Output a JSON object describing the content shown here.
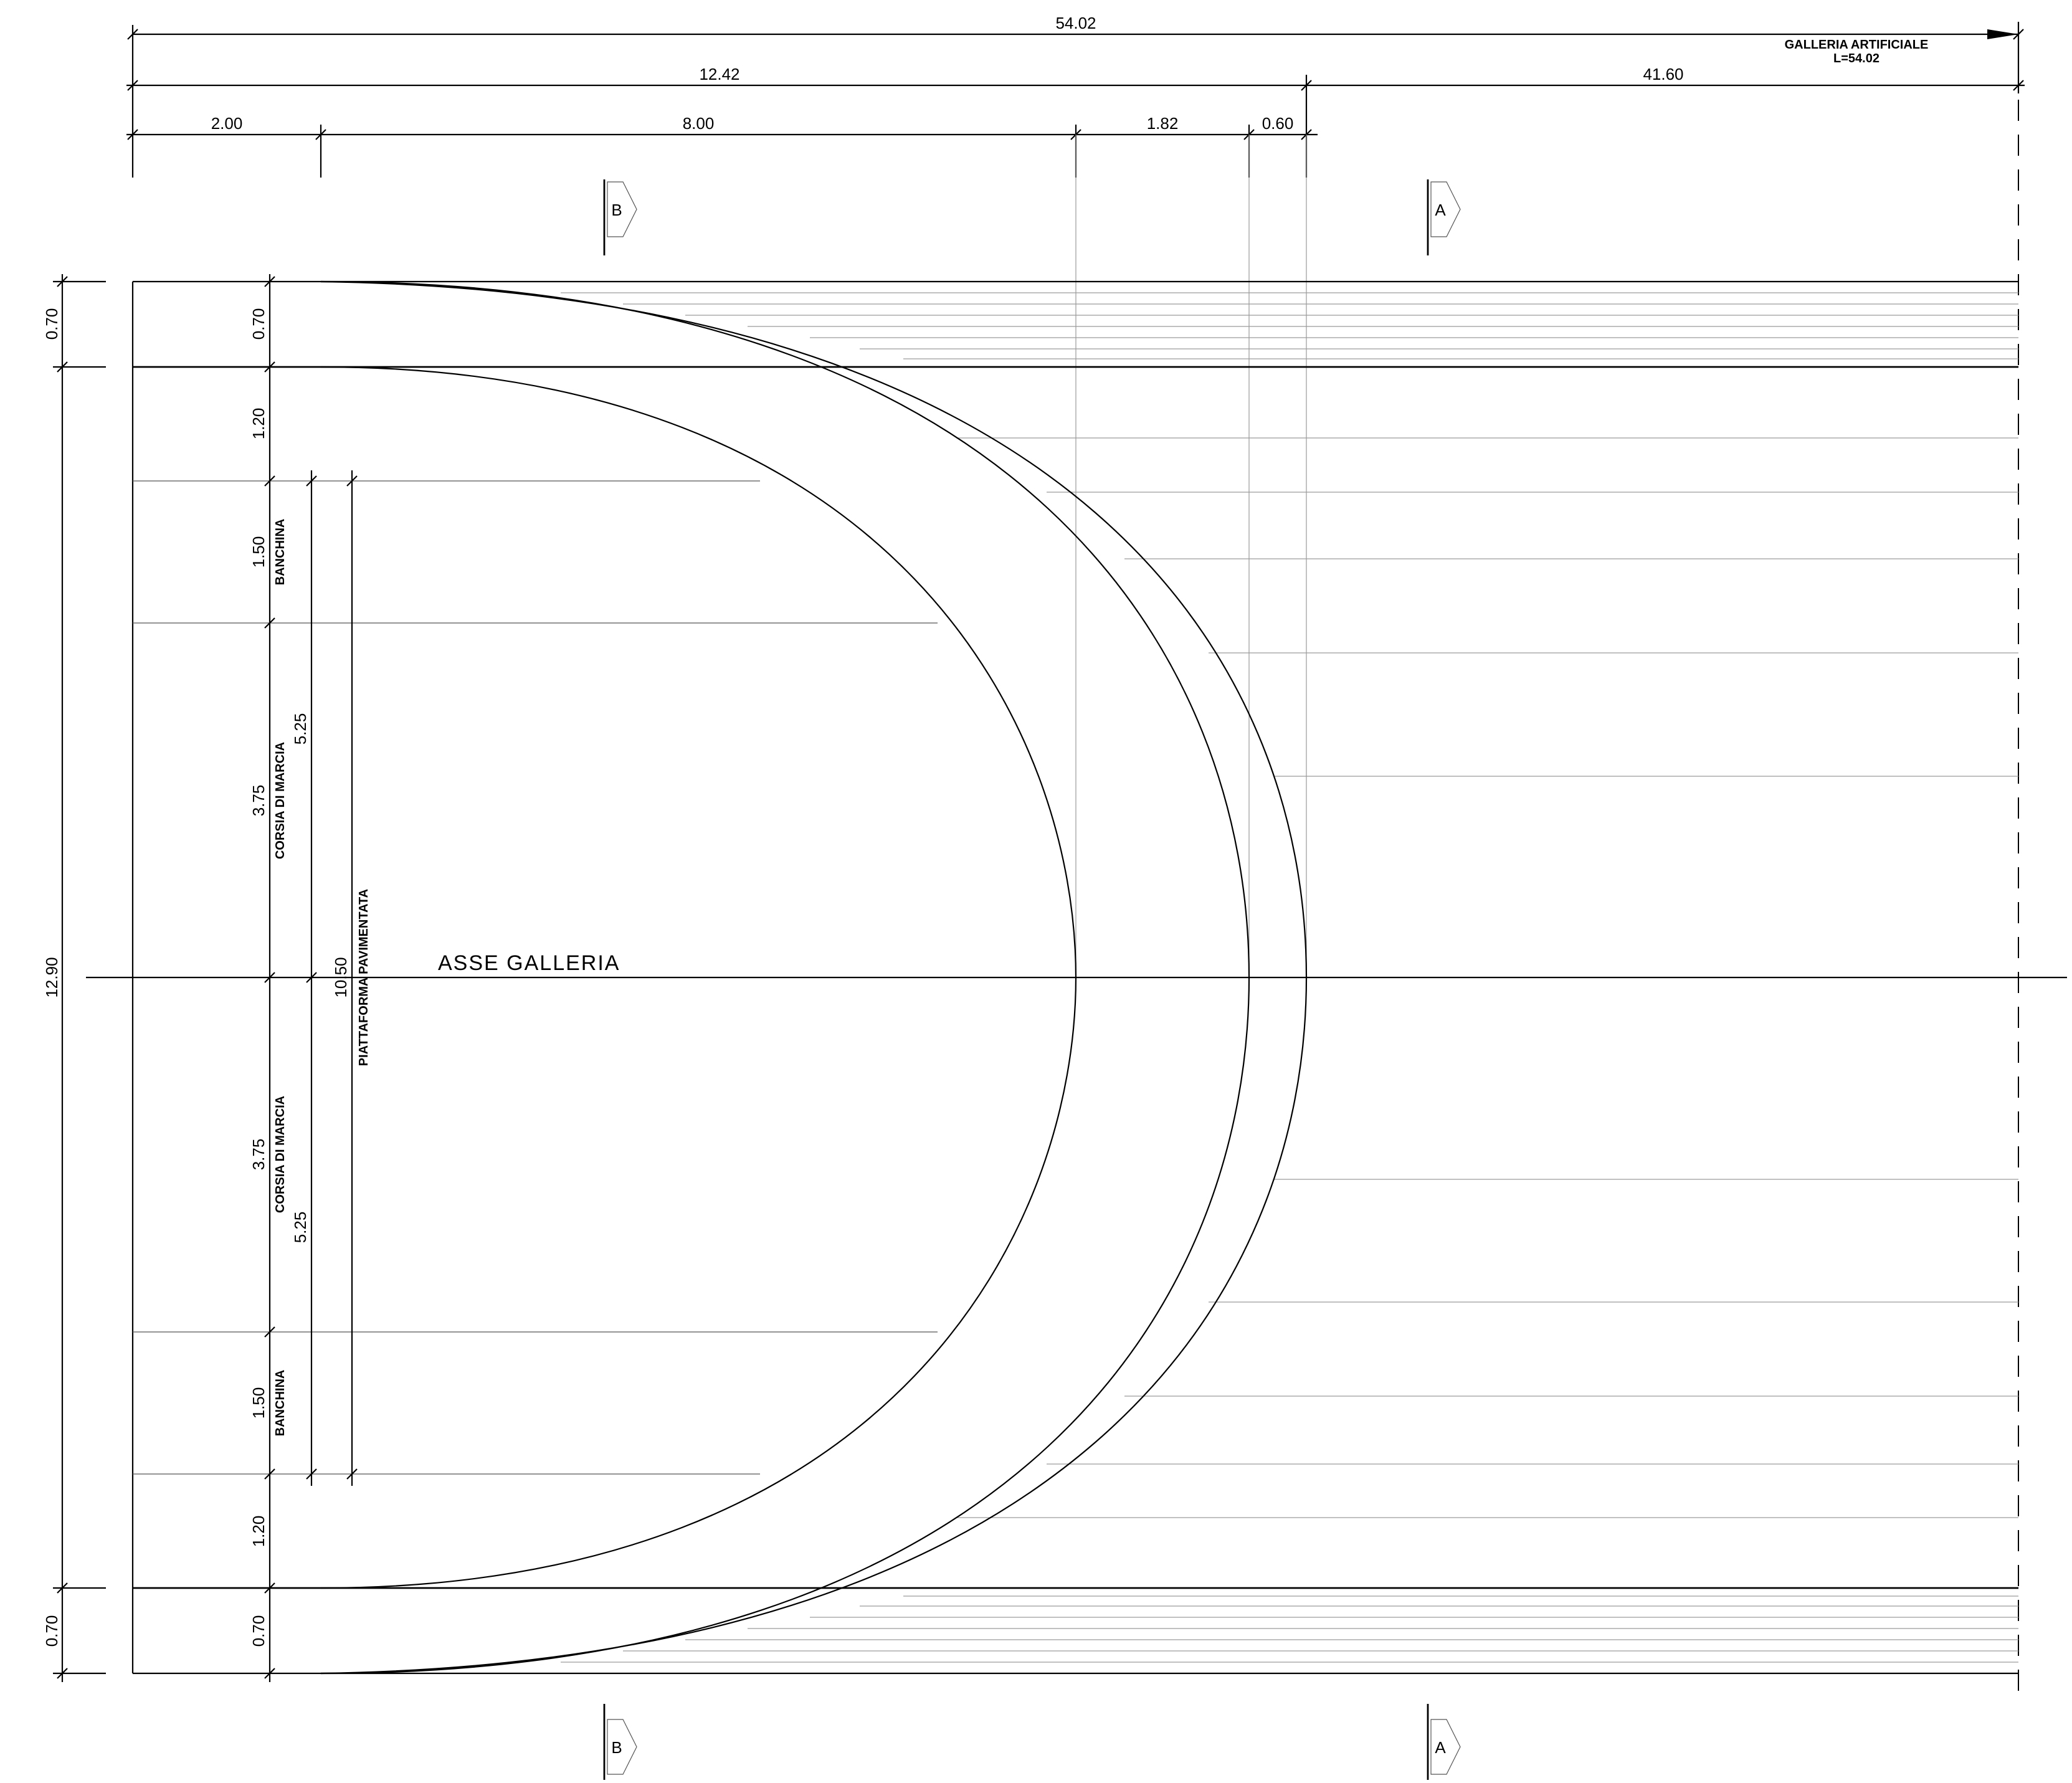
{
  "dimensions_top": {
    "total": "54.02",
    "part_a": "12.42",
    "part_b": "41.60",
    "seg_1": "2.00",
    "seg_2": "8.00",
    "seg_3": "1.82",
    "seg_4": "0.60"
  },
  "galleria_label": {
    "line1": "GALLERIA ARTIFICIALE",
    "line2": "L=54.02"
  },
  "section_markers": {
    "b": "B",
    "a": "A"
  },
  "dimensions_left_outer": {
    "top": "0.70",
    "middle": "12.90",
    "bottom": "0.70"
  },
  "dimensions_left_inner": [
    "0.70",
    "1.20",
    "1.50",
    "3.75",
    "3.75",
    "1.50",
    "1.20",
    "0.70"
  ],
  "lane_labels": {
    "banchina": "BANCHINA",
    "corsia": "CORSIA DI MARCIA"
  },
  "half_width": "5.25",
  "platform": {
    "width": "10.50",
    "label": "PIATTAFORMA PAVIMENTATA"
  },
  "axis_label": "ASSE GALLERIA"
}
